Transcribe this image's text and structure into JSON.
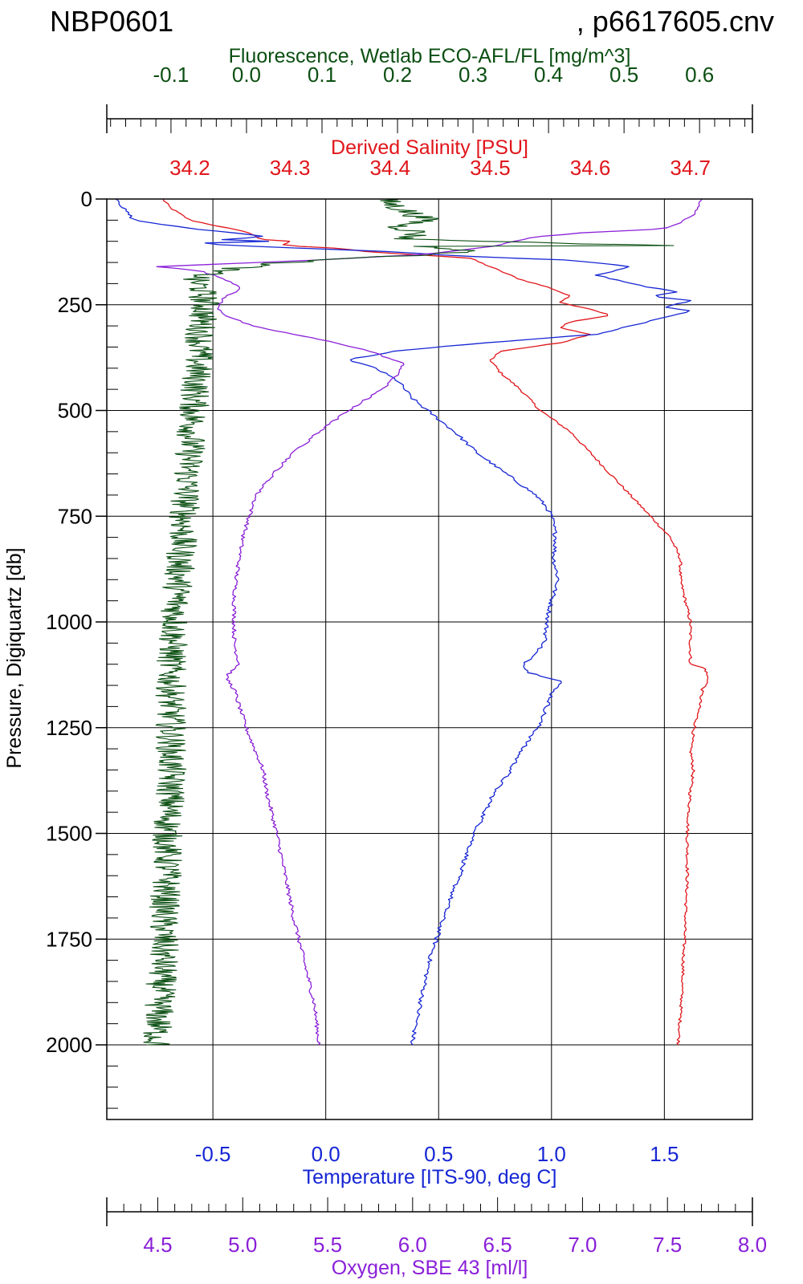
{
  "header": {
    "cruise": "NBP0601",
    "file": ", p6617605.cnv"
  },
  "chart_data": {
    "type": "line",
    "y_axis": {
      "label": "Pressure, Digiquartz [db]",
      "range": [
        0,
        2200
      ],
      "inverted": true,
      "ticks": [
        0,
        250,
        500,
        750,
        1000,
        1250,
        1500,
        1750,
        2000
      ],
      "tick_labels": [
        "0",
        "250",
        "500",
        "750",
        "1000",
        "1250",
        "1500",
        "1750",
        "2000"
      ],
      "grid": true
    },
    "axes": {
      "fluorescence": {
        "label": "Fluorescence, Wetlab ECO-AFL/FL [mg/m^3]",
        "position": "top",
        "color": "#0b4f12",
        "range": [
          -0.185,
          0.67
        ],
        "ticks": [
          -0.1,
          0.0,
          0.1,
          0.2,
          0.3,
          0.4,
          0.5,
          0.6
        ],
        "tick_labels": [
          "-0.1",
          "0.0",
          "0.1",
          "0.2",
          "0.3",
          "0.4",
          "0.5",
          "0.6"
        ]
      },
      "salinity": {
        "label": "Derived Salinity [PSU]",
        "position": "top",
        "color": "#e0161b",
        "range": [
          34.117,
          34.762
        ],
        "ticks": [
          34.2,
          34.3,
          34.4,
          34.5,
          34.6,
          34.7
        ],
        "tick_labels": [
          "34.2",
          "34.3",
          "34.4",
          "34.5",
          "34.6",
          "34.7"
        ]
      },
      "temperature": {
        "label": "Temperature [ITS-90, deg C]",
        "position": "bottom",
        "color": "#1626d4",
        "range": [
          -0.97,
          1.89
        ],
        "ticks": [
          -0.5,
          0.0,
          0.5,
          1.0,
          1.5
        ],
        "tick_labels": [
          "-0.5",
          "0.0",
          "0.5",
          "1.0",
          "1.5"
        ],
        "grid": true
      },
      "oxygen": {
        "label": "Oxygen, SBE 43 [ml/l]",
        "position": "bottom",
        "color": "#8a1fd8",
        "range": [
          4.2,
          8.0
        ],
        "ticks": [
          4.5,
          5.0,
          5.5,
          6.0,
          6.5,
          7.0,
          7.5,
          8.0
        ],
        "tick_labels": [
          "4.5",
          "5.0",
          "5.5",
          "6.0",
          "6.5",
          "7.0",
          "7.5",
          "8.0"
        ]
      }
    },
    "series": [
      {
        "axis": "salinity",
        "color": "#e0161b",
        "points": [
          [
            0,
            34.173
          ],
          [
            20,
            34.18
          ],
          [
            50,
            34.2
          ],
          [
            80,
            34.26
          ],
          [
            95,
            34.27
          ],
          [
            100,
            34.3
          ],
          [
            110,
            34.29
          ],
          [
            115,
            34.34
          ],
          [
            125,
            34.38
          ],
          [
            135,
            34.45
          ],
          [
            140,
            34.48
          ],
          [
            160,
            34.5
          ],
          [
            190,
            34.53
          ],
          [
            210,
            34.56
          ],
          [
            230,
            34.58
          ],
          [
            245,
            34.57
          ],
          [
            260,
            34.6
          ],
          [
            275,
            34.62
          ],
          [
            290,
            34.58
          ],
          [
            305,
            34.57
          ],
          [
            320,
            34.6
          ],
          [
            340,
            34.57
          ],
          [
            360,
            34.51
          ],
          [
            380,
            34.5
          ],
          [
            410,
            34.51
          ],
          [
            450,
            34.53
          ],
          [
            500,
            34.55
          ],
          [
            550,
            34.58
          ],
          [
            600,
            34.6
          ],
          [
            650,
            34.62
          ],
          [
            700,
            34.64
          ],
          [
            750,
            34.66
          ],
          [
            800,
            34.68
          ],
          [
            850,
            34.69
          ],
          [
            900,
            34.69
          ],
          [
            1000,
            34.7
          ],
          [
            1100,
            34.7
          ],
          [
            1110,
            34.715
          ],
          [
            1140,
            34.718
          ],
          [
            1160,
            34.712
          ],
          [
            1200,
            34.709
          ],
          [
            1250,
            34.704
          ],
          [
            1300,
            34.7
          ],
          [
            1350,
            34.703
          ],
          [
            1400,
            34.7
          ],
          [
            1500,
            34.697
          ],
          [
            1600,
            34.697
          ],
          [
            1700,
            34.695
          ],
          [
            1800,
            34.693
          ],
          [
            1900,
            34.691
          ],
          [
            2000,
            34.688
          ]
        ]
      },
      {
        "axis": "temperature",
        "color": "#1626d4",
        "points": [
          [
            0,
            -0.92
          ],
          [
            20,
            -0.9
          ],
          [
            50,
            -0.85
          ],
          [
            70,
            -0.6
          ],
          [
            80,
            -0.4
          ],
          [
            90,
            -0.25
          ],
          [
            95,
            -0.5
          ],
          [
            100,
            -0.25
          ],
          [
            105,
            -0.6
          ],
          [
            110,
            -0.4
          ],
          [
            125,
            0.3
          ],
          [
            135,
            0.6
          ],
          [
            145,
            1.1
          ],
          [
            160,
            1.35
          ],
          [
            180,
            1.2
          ],
          [
            200,
            1.35
          ],
          [
            220,
            1.55
          ],
          [
            230,
            1.45
          ],
          [
            240,
            1.62
          ],
          [
            255,
            1.5
          ],
          [
            265,
            1.62
          ],
          [
            280,
            1.5
          ],
          [
            300,
            1.35
          ],
          [
            320,
            1.2
          ],
          [
            340,
            0.7
          ],
          [
            360,
            0.3
          ],
          [
            375,
            0.15
          ],
          [
            380,
            0.1
          ],
          [
            400,
            0.22
          ],
          [
            430,
            0.32
          ],
          [
            470,
            0.38
          ],
          [
            500,
            0.45
          ],
          [
            550,
            0.57
          ],
          [
            600,
            0.67
          ],
          [
            650,
            0.8
          ],
          [
            700,
            0.93
          ],
          [
            730,
            0.98
          ],
          [
            750,
            1.0
          ],
          [
            800,
            1.02
          ],
          [
            850,
            1.01
          ],
          [
            900,
            1.03
          ],
          [
            950,
            1.0
          ],
          [
            1000,
            0.98
          ],
          [
            1050,
            0.97
          ],
          [
            1100,
            0.88
          ],
          [
            1120,
            0.9
          ],
          [
            1140,
            1.05
          ],
          [
            1160,
            1.01
          ],
          [
            1200,
            0.98
          ],
          [
            1250,
            0.94
          ],
          [
            1300,
            0.87
          ],
          [
            1350,
            0.82
          ],
          [
            1400,
            0.75
          ],
          [
            1500,
            0.66
          ],
          [
            1600,
            0.59
          ],
          [
            1700,
            0.52
          ],
          [
            1800,
            0.46
          ],
          [
            1900,
            0.42
          ],
          [
            2000,
            0.38
          ]
        ]
      },
      {
        "axis": "oxygen",
        "color": "#8a1fd8",
        "points": [
          [
            0,
            7.7
          ],
          [
            40,
            7.65
          ],
          [
            70,
            7.5
          ],
          [
            80,
            7.0
          ],
          [
            90,
            6.7
          ],
          [
            110,
            6.5
          ],
          [
            130,
            6.1
          ],
          [
            145,
            5.4
          ],
          [
            155,
            4.8
          ],
          [
            160,
            4.5
          ],
          [
            170,
            4.75
          ],
          [
            190,
            4.9
          ],
          [
            210,
            5.0
          ],
          [
            230,
            4.9
          ],
          [
            255,
            4.85
          ],
          [
            275,
            4.9
          ],
          [
            300,
            5.05
          ],
          [
            320,
            5.3
          ],
          [
            340,
            5.55
          ],
          [
            360,
            5.75
          ],
          [
            375,
            5.85
          ],
          [
            390,
            5.95
          ],
          [
            410,
            5.92
          ],
          [
            450,
            5.82
          ],
          [
            500,
            5.62
          ],
          [
            550,
            5.45
          ],
          [
            600,
            5.3
          ],
          [
            650,
            5.18
          ],
          [
            700,
            5.08
          ],
          [
            750,
            5.04
          ],
          [
            800,
            5.0
          ],
          [
            850,
            4.98
          ],
          [
            900,
            4.96
          ],
          [
            950,
            4.95
          ],
          [
            1000,
            4.95
          ],
          [
            1050,
            4.95
          ],
          [
            1100,
            4.98
          ],
          [
            1130,
            4.9
          ],
          [
            1160,
            4.95
          ],
          [
            1200,
            4.98
          ],
          [
            1250,
            5.02
          ],
          [
            1300,
            5.07
          ],
          [
            1350,
            5.12
          ],
          [
            1400,
            5.14
          ],
          [
            1500,
            5.2
          ],
          [
            1600,
            5.25
          ],
          [
            1700,
            5.3
          ],
          [
            1800,
            5.36
          ],
          [
            1900,
            5.42
          ],
          [
            2000,
            5.45
          ]
        ]
      },
      {
        "axis": "fluorescence",
        "color": "#0b4f12",
        "points": [
          [
            0,
            0.18
          ],
          [
            10,
            0.19
          ],
          [
            20,
            0.2
          ],
          [
            35,
            0.22
          ],
          [
            50,
            0.24
          ],
          [
            65,
            0.2
          ],
          [
            80,
            0.23
          ],
          [
            95,
            0.21
          ],
          [
            110,
            0.55
          ],
          [
            112,
            0.24
          ],
          [
            125,
            0.3
          ],
          [
            135,
            0.2
          ],
          [
            150,
            0.05
          ],
          [
            170,
            -0.04
          ],
          [
            190,
            -0.07
          ],
          [
            210,
            -0.06
          ],
          [
            250,
            -0.055
          ],
          [
            300,
            -0.06
          ],
          [
            400,
            -0.065
          ],
          [
            500,
            -0.07
          ],
          [
            600,
            -0.075
          ],
          [
            700,
            -0.08
          ],
          [
            800,
            -0.085
          ],
          [
            900,
            -0.09
          ],
          [
            1000,
            -0.095
          ],
          [
            1100,
            -0.1
          ],
          [
            1200,
            -0.1
          ],
          [
            1300,
            -0.1
          ],
          [
            1400,
            -0.1
          ],
          [
            1500,
            -0.105
          ],
          [
            1600,
            -0.105
          ],
          [
            1700,
            -0.11
          ],
          [
            1800,
            -0.11
          ],
          [
            1900,
            -0.115
          ],
          [
            2000,
            -0.12
          ]
        ]
      }
    ]
  }
}
